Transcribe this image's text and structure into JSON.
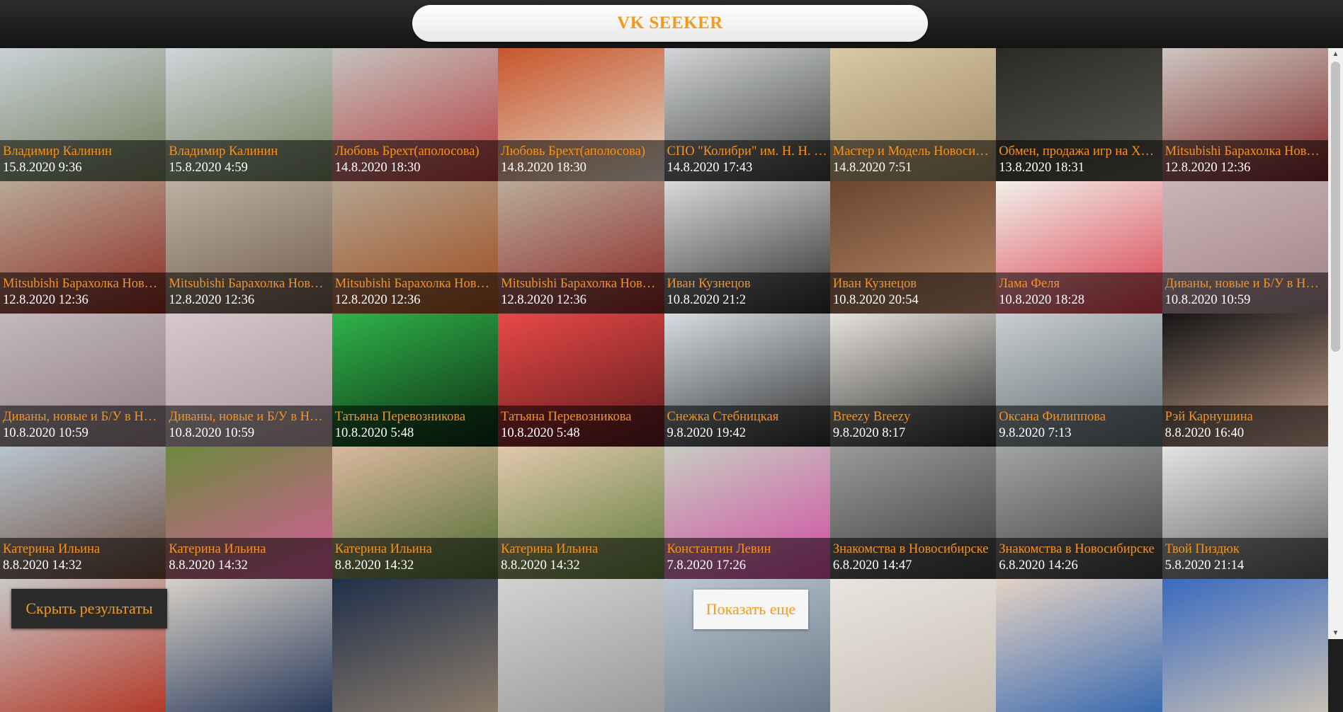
{
  "header": {
    "title": "VK SEEKER"
  },
  "results": [
    {
      "name": "Владимир Калинин",
      "date": "15.8.2020 9:36",
      "colors": [
        "#c9d1d6",
        "#6f7a56"
      ]
    },
    {
      "name": "Владимир Калинин",
      "date": "15.8.2020 4:59",
      "colors": [
        "#cfd5d9",
        "#707d59"
      ]
    },
    {
      "name": "Любовь Брехт(аполосова)",
      "date": "14.8.2020 18:30",
      "colors": [
        "#c4c2bd",
        "#b53a3d"
      ]
    },
    {
      "name": "Любовь Брехт(аполосова)",
      "date": "14.8.2020 18:30",
      "colors": [
        "#c8562c",
        "#e3d9c8"
      ]
    },
    {
      "name": "СПО \"Колибри\" им. Н. Н. Кравченко",
      "date": "14.8.2020 17:43",
      "colors": [
        "#d3d5d8",
        "#3a3d38"
      ]
    },
    {
      "name": "Мастер и Модель Новосибирск",
      "date": "14.8.2020 7:51",
      "colors": [
        "#d9c9a6",
        "#9a8560"
      ]
    },
    {
      "name": "Обмен, продажа игр на XBOX",
      "date": "13.8.2020 18:31",
      "colors": [
        "#2b2a27",
        "#5a5850"
      ]
    },
    {
      "name": "Mitsubishi Барахолка Новосибирск",
      "date": "12.8.2020 12:36",
      "colors": [
        "#cdc6c0",
        "#7a2222"
      ]
    },
    {
      "name": "Mitsubishi Барахолка Новосибирск",
      "date": "12.8.2020 12:36",
      "colors": [
        "#b8a896",
        "#8b2a22"
      ]
    },
    {
      "name": "Mitsubishi Барахолка Новосибирск",
      "date": "12.8.2020 12:36",
      "colors": [
        "#bcb0a2",
        "#6e5a4a"
      ]
    },
    {
      "name": "Mitsubishi Барахолка Новосибирск",
      "date": "12.8.2020 12:36",
      "colors": [
        "#b4a38f",
        "#9c4a1c"
      ]
    },
    {
      "name": "Mitsubishi Барахолка Новосибирск",
      "date": "12.8.2020 12:36",
      "colors": [
        "#b9ab99",
        "#8a2424"
      ]
    },
    {
      "name": "Иван Кузнецов",
      "date": "10.8.2020 21:2",
      "colors": [
        "#d9d9d9",
        "#2a2a2a"
      ]
    },
    {
      "name": "Иван Кузнецов",
      "date": "10.8.2020 20:54",
      "colors": [
        "#6a4630",
        "#b98a6a"
      ]
    },
    {
      "name": "Лама Феля",
      "date": "10.8.2020 18:28",
      "colors": [
        "#f2f0ea",
        "#d83a4a"
      ]
    },
    {
      "name": "Диваны, новые и Б/У в Новосибирске",
      "date": "10.8.2020 10:59",
      "colors": [
        "#c9b4b8",
        "#9e8288"
      ]
    },
    {
      "name": "Диваны, новые и Б/У в Новосибирске",
      "date": "10.8.2020 10:59",
      "colors": [
        "#c3b8bc",
        "#8e7c80"
      ]
    },
    {
      "name": "Диваны, новые и Б/У в Новосибирске",
      "date": "10.8.2020 10:59",
      "colors": [
        "#d6c8cc",
        "#a79498"
      ]
    },
    {
      "name": "Татьяна Перевозникова",
      "date": "10.8.2020 5:48",
      "colors": [
        "#2fb34a",
        "#0d2a12"
      ]
    },
    {
      "name": "Татьяна Перевозникова",
      "date": "10.8.2020 5:48",
      "colors": [
        "#e84848",
        "#5a1a1a"
      ]
    },
    {
      "name": "Снежка Стебницкая",
      "date": "9.8.2020 19:42",
      "colors": [
        "#d7dde3",
        "#2c2c2c"
      ]
    },
    {
      "name": "Breezy Breezy",
      "date": "9.8.2020 8:17",
      "colors": [
        "#e6e2dc",
        "#2a2a2a"
      ]
    },
    {
      "name": "Оксана Филиппова",
      "date": "9.8.2020 7:13",
      "colors": [
        "#c8cdd2",
        "#5d6a6e"
      ]
    },
    {
      "name": "Рэй Карнушина",
      "date": "8.8.2020 16:40",
      "colors": [
        "#151515",
        "#c7a28e"
      ]
    },
    {
      "name": "Катерина Ильина",
      "date": "8.8.2020 14:32",
      "colors": [
        "#b7c4cf",
        "#6c4a3a"
      ]
    },
    {
      "name": "Катерина Ильина",
      "date": "8.8.2020 14:32",
      "colors": [
        "#6c8a3e",
        "#d85a9a"
      ]
    },
    {
      "name": "Катерина Ильина",
      "date": "8.8.2020 14:32",
      "colors": [
        "#d9b89e",
        "#4d6a2f"
      ]
    },
    {
      "name": "Катерина Ильина",
      "date": "8.8.2020 14:32",
      "colors": [
        "#e0c8ac",
        "#5d7a3a"
      ]
    },
    {
      "name": "Константин Левин",
      "date": "7.8.2020 17:26",
      "colors": [
        "#c7ccc2",
        "#d14aa0"
      ]
    },
    {
      "name": "Знакомства в Новосибирске",
      "date": "6.8.2020 14:47",
      "colors": [
        "#9a9a9a",
        "#3a3a3a"
      ]
    },
    {
      "name": "Знакомства в Новосибирске",
      "date": "6.8.2020 14:26",
      "colors": [
        "#a3a3a3",
        "#3c3c3c"
      ]
    },
    {
      "name": "Твой Пиздюк",
      "date": "5.8.2020 21:14",
      "colors": [
        "#e3e3e3",
        "#5a5a5a"
      ]
    },
    {
      "name": "",
      "date": "",
      "colors": [
        "#c8c8c8",
        "#b33a2a"
      ]
    },
    {
      "name": "",
      "date": "",
      "colors": [
        "#d6d0c8",
        "#2a3a5a"
      ]
    },
    {
      "name": "",
      "date": "",
      "colors": [
        "#20304a",
        "#8a7a6a"
      ]
    },
    {
      "name": "",
      "date": "",
      "colors": [
        "#d2d2d2",
        "#9a9a9a"
      ]
    },
    {
      "name": "",
      "date": "",
      "colors": [
        "#bcc6d0",
        "#6a7a8a"
      ]
    },
    {
      "name": "",
      "date": "",
      "colors": [
        "#e8e4de",
        "#c9c0b4"
      ]
    },
    {
      "name": "",
      "date": "",
      "colors": [
        "#e4d2c4",
        "#3a6ab0"
      ]
    },
    {
      "name": "",
      "date": "",
      "colors": [
        "#3a6ac0",
        "#c8c0b4"
      ]
    }
  ],
  "controls": {
    "hide_results": "Скрыть результаты",
    "show_more": "Показать еще"
  }
}
